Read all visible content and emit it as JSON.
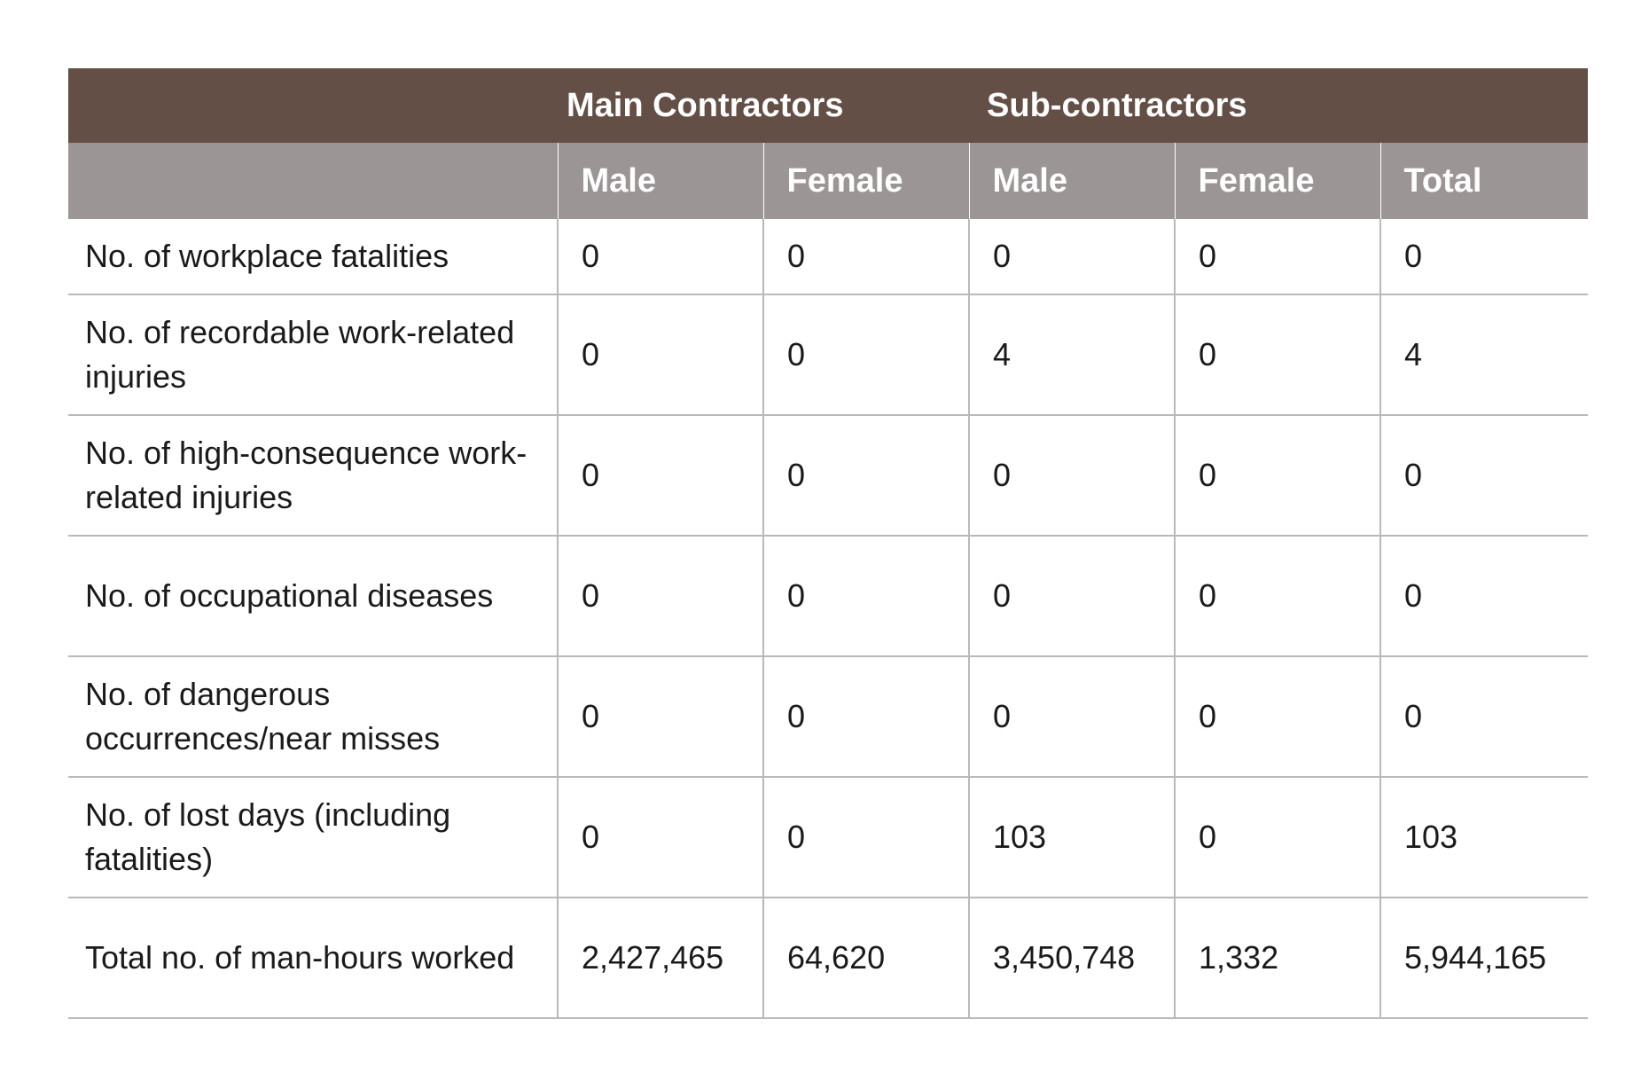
{
  "table": {
    "group_headers": {
      "main_contractors": "Main Contractors",
      "sub_contractors": "Sub-contractors"
    },
    "sub_headers": [
      "Male",
      "Female",
      "Male",
      "Female",
      "Total"
    ],
    "rows": [
      {
        "label": "No. of workplace fatalities",
        "values": [
          "0",
          "0",
          "0",
          "0",
          "0"
        ]
      },
      {
        "label": "No. of recordable work-related injuries",
        "values": [
          "0",
          "0",
          "4",
          "0",
          "4"
        ]
      },
      {
        "label": "No. of high-consequence work-related injuries",
        "values": [
          "0",
          "0",
          "0",
          "0",
          "0"
        ]
      },
      {
        "label": "No. of occupational diseases",
        "values": [
          "0",
          "0",
          "0",
          "0",
          "0"
        ]
      },
      {
        "label": "No. of dangerous occurrences/near misses",
        "values": [
          "0",
          "0",
          "0",
          "0",
          "0"
        ]
      },
      {
        "label": "No. of lost days (including fatalities)",
        "values": [
          "0",
          "0",
          "103",
          "0",
          "103"
        ]
      },
      {
        "label": "Total no. of man-hours worked",
        "values": [
          "2,427,465",
          "64,620",
          "3,450,748",
          "1,332",
          "5,944,165"
        ]
      }
    ],
    "colors": {
      "group_header_bg": "#644f47",
      "sub_header_bg": "#9c9595",
      "rule": "#b9b9b9"
    }
  }
}
